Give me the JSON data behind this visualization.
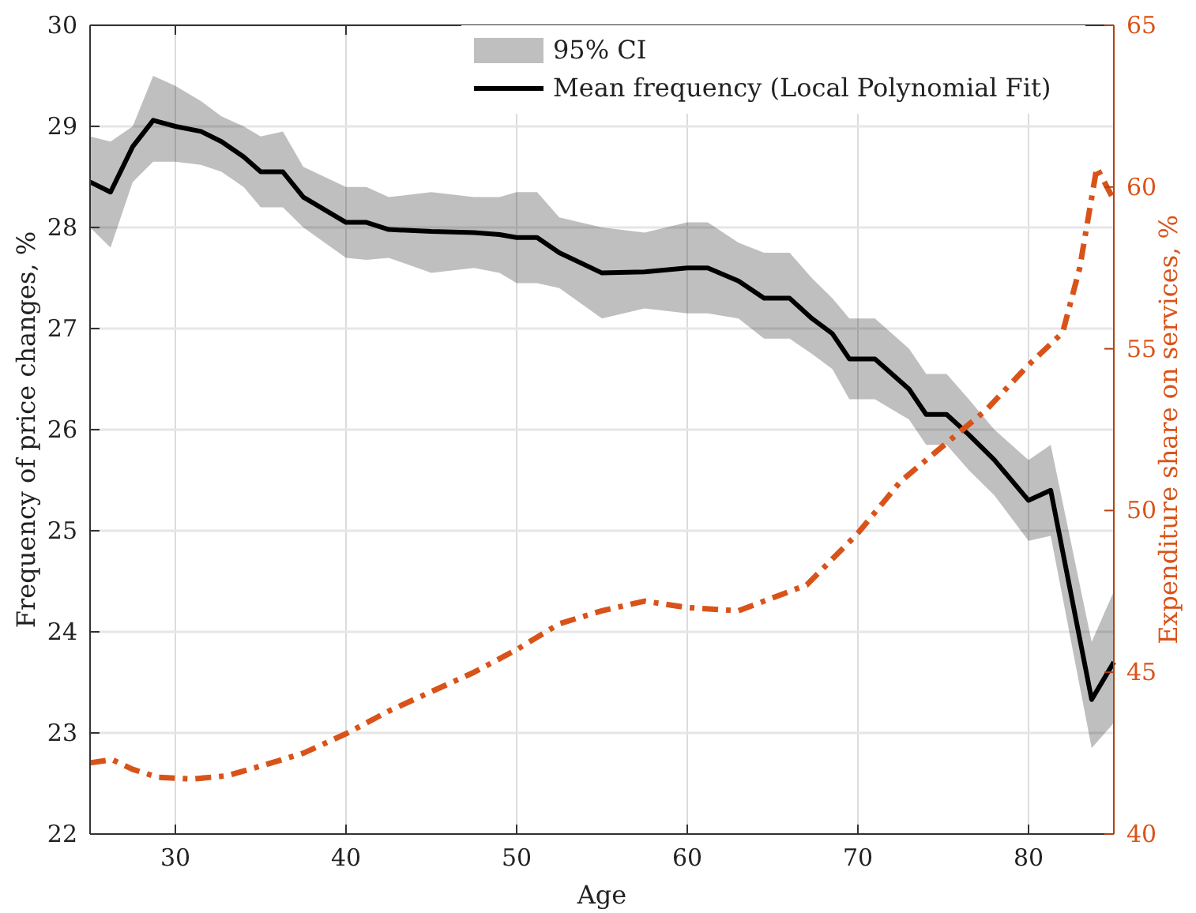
{
  "chart_data": {
    "type": "line",
    "xlabel": "Age",
    "ylabel": "Frequency of price changes, %",
    "y2label": "Expenditure share on services, %",
    "xlim": [
      25,
      85
    ],
    "xticks": [
      30,
      40,
      50,
      60,
      70,
      80
    ],
    "ylim": [
      22,
      30
    ],
    "yticks": [
      22,
      23,
      24,
      25,
      26,
      27,
      28,
      29,
      30
    ],
    "y2lim": [
      40,
      65
    ],
    "y2ticks": [
      40,
      45,
      50,
      55,
      60,
      65
    ],
    "grid": true,
    "legend": "top",
    "annotations": [
      "95% CI"
    ],
    "series": [
      {
        "name": "Mean frequency (Local Polynomial Fit)",
        "color": "#000000",
        "line_style": "solid",
        "x": [
          25,
          26.2,
          27.5,
          28.7,
          30,
          31.5,
          32.7,
          34,
          35,
          36.3,
          37.5,
          40,
          41.2,
          42.5,
          45,
          47.5,
          49,
          50,
          51.2,
          52.5,
          55,
          57.5,
          60,
          61.2,
          63,
          64.5,
          66,
          67.3,
          68.5,
          69.5,
          71,
          73,
          74,
          75.2,
          76.5,
          78,
          80,
          81.3,
          83.7,
          85
        ],
        "values": [
          28.45,
          28.35,
          28.8,
          29.06,
          29.0,
          28.95,
          28.85,
          28.7,
          28.55,
          28.55,
          28.3,
          28.05,
          28.05,
          27.98,
          27.96,
          27.95,
          27.93,
          27.9,
          27.9,
          27.75,
          27.55,
          27.56,
          27.6,
          27.6,
          27.47,
          27.3,
          27.3,
          27.1,
          26.95,
          26.7,
          26.7,
          26.4,
          26.15,
          26.15,
          25.95,
          25.7,
          25.3,
          25.4,
          23.33,
          23.7
        ],
        "lower": [
          28.0,
          27.8,
          28.45,
          28.65,
          28.65,
          28.62,
          28.55,
          28.4,
          28.2,
          28.2,
          28.0,
          27.7,
          27.68,
          27.7,
          27.55,
          27.6,
          27.55,
          27.45,
          27.45,
          27.4,
          27.1,
          27.2,
          27.15,
          27.15,
          27.1,
          26.9,
          26.9,
          26.75,
          26.6,
          26.3,
          26.3,
          26.1,
          25.85,
          25.85,
          25.6,
          25.35,
          24.9,
          24.95,
          22.85,
          23.1
        ],
        "upper": [
          28.9,
          28.85,
          29.0,
          29.5,
          29.4,
          29.25,
          29.1,
          29.0,
          28.9,
          28.95,
          28.6,
          28.4,
          28.4,
          28.3,
          28.35,
          28.3,
          28.3,
          28.35,
          28.35,
          28.1,
          28.0,
          27.95,
          28.05,
          28.05,
          27.85,
          27.75,
          27.75,
          27.5,
          27.3,
          27.1,
          27.1,
          26.8,
          26.55,
          26.55,
          26.3,
          26.0,
          25.7,
          25.85,
          23.9,
          24.4
        ]
      },
      {
        "type": "line",
        "axis": "y2",
        "color": "#d95319",
        "line_style": "dashdot",
        "x": [
          25,
          26.3,
          27.5,
          29,
          31,
          33,
          35,
          37.5,
          40,
          42.5,
          45,
          47.5,
          50,
          52.5,
          55,
          57.5,
          60,
          63,
          65,
          67,
          70,
          72.5,
          75,
          77.5,
          80,
          82,
          83,
          84,
          85
        ],
        "values": [
          42.2,
          42.3,
          42.0,
          41.75,
          41.7,
          41.8,
          42.1,
          42.5,
          43.1,
          43.8,
          44.4,
          45.0,
          45.7,
          46.5,
          46.9,
          47.2,
          47.0,
          46.9,
          47.3,
          47.7,
          49.3,
          50.9,
          52.0,
          53.1,
          54.5,
          55.5,
          57.5,
          60.6,
          59.6
        ]
      }
    ]
  }
}
